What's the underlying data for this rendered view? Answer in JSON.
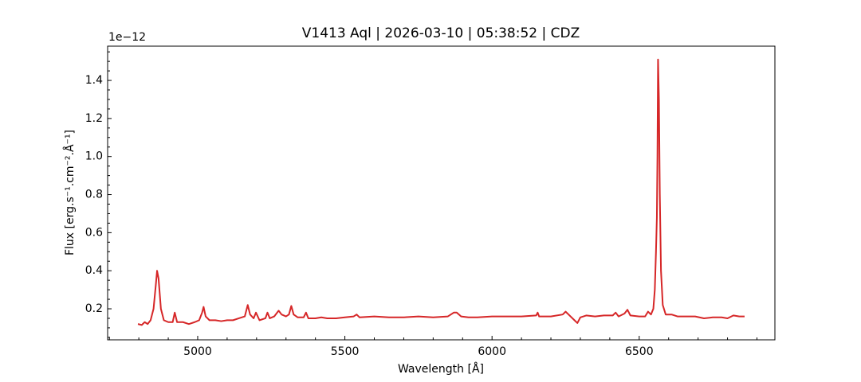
{
  "chart_data": {
    "type": "line",
    "title": "V1413 Aql | 2026-03-10 | 05:38:52 | CDZ",
    "x_label": "Wavelength [Å]",
    "y_label": "Flux [erg.s⁻¹.cm⁻².Å⁻¹]",
    "y_offset_label": "1e−12",
    "color": "#d62728",
    "x": [
      4797,
      4810,
      4820,
      4830,
      4840,
      4850,
      4858,
      4862,
      4867,
      4875,
      4885,
      4900,
      4915,
      4922,
      4930,
      4950,
      4970,
      4990,
      5005,
      5015,
      5020,
      5027,
      5040,
      5060,
      5080,
      5100,
      5120,
      5140,
      5160,
      5170,
      5178,
      5190,
      5198,
      5210,
      5230,
      5237,
      5245,
      5260,
      5275,
      5285,
      5300,
      5310,
      5318,
      5326,
      5340,
      5360,
      5368,
      5376,
      5400,
      5420,
      5440,
      5470,
      5500,
      5530,
      5540,
      5550,
      5600,
      5650,
      5700,
      5750,
      5800,
      5850,
      5870,
      5880,
      5895,
      5920,
      5950,
      6000,
      6050,
      6100,
      6150,
      6155,
      6160,
      6200,
      6240,
      6250,
      6260,
      6280,
      6290,
      6300,
      6320,
      6350,
      6380,
      6410,
      6420,
      6430,
      6450,
      6460,
      6470,
      6500,
      6520,
      6530,
      6540,
      6548,
      6553,
      6557,
      6560,
      6562,
      6564,
      6567,
      6570,
      6574,
      6580,
      6590,
      6610,
      6630,
      6660,
      6690,
      6720,
      6750,
      6780,
      6800,
      6820,
      6840,
      6858
    ],
    "values": [
      0.12,
      0.115,
      0.13,
      0.12,
      0.14,
      0.2,
      0.33,
      0.4,
      0.36,
      0.2,
      0.14,
      0.13,
      0.13,
      0.18,
      0.13,
      0.13,
      0.12,
      0.13,
      0.14,
      0.18,
      0.21,
      0.16,
      0.14,
      0.14,
      0.135,
      0.14,
      0.14,
      0.15,
      0.16,
      0.22,
      0.17,
      0.15,
      0.18,
      0.14,
      0.15,
      0.18,
      0.15,
      0.16,
      0.19,
      0.17,
      0.16,
      0.17,
      0.215,
      0.17,
      0.155,
      0.155,
      0.18,
      0.15,
      0.15,
      0.155,
      0.15,
      0.15,
      0.155,
      0.16,
      0.17,
      0.155,
      0.16,
      0.155,
      0.155,
      0.16,
      0.155,
      0.16,
      0.18,
      0.18,
      0.16,
      0.155,
      0.155,
      0.16,
      0.16,
      0.16,
      0.165,
      0.18,
      0.16,
      0.16,
      0.17,
      0.185,
      0.17,
      0.14,
      0.125,
      0.155,
      0.165,
      0.16,
      0.165,
      0.165,
      0.18,
      0.16,
      0.175,
      0.195,
      0.165,
      0.16,
      0.16,
      0.185,
      0.17,
      0.2,
      0.3,
      0.5,
      0.68,
      1.0,
      1.51,
      1.3,
      0.8,
      0.4,
      0.22,
      0.17,
      0.17,
      0.16,
      0.16,
      0.16,
      0.15,
      0.155,
      0.155,
      0.15,
      0.165,
      0.16,
      0.16
    ],
    "xlim": [
      4694,
      6961
    ],
    "ylim": [
      0.037,
      1.58
    ],
    "xticks": [
      5000,
      5500,
      6000,
      6500
    ],
    "yticks": [
      0.2,
      0.4,
      0.6,
      0.8,
      {
        "value": 1.0,
        "label": "1.0"
      },
      1.2,
      1.4
    ],
    "xminorticks": [
      4700,
      4800,
      4900,
      5100,
      5200,
      5300,
      5400,
      5600,
      5700,
      5800,
      5900,
      6100,
      6200,
      6300,
      6400,
      6600,
      6700,
      6800,
      6900
    ],
    "yminorticks": [
      0.05,
      0.1,
      0.15,
      0.25,
      0.3,
      0.35,
      0.45,
      0.5,
      0.55,
      0.65,
      0.7,
      0.75,
      0.85,
      0.9,
      0.95,
      1.05,
      1.1,
      1.15,
      1.25,
      1.3,
      1.35,
      1.45,
      1.5,
      1.55
    ],
    "grid": false
  }
}
